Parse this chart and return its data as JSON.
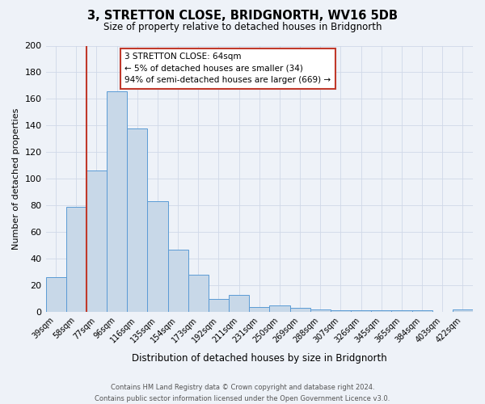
{
  "title": "3, STRETTON CLOSE, BRIDGNORTH, WV16 5DB",
  "subtitle": "Size of property relative to detached houses in Bridgnorth",
  "xlabel": "Distribution of detached houses by size in Bridgnorth",
  "ylabel": "Number of detached properties",
  "footer_line1": "Contains HM Land Registry data © Crown copyright and database right 2024.",
  "footer_line2": "Contains public sector information licensed under the Open Government Licence v3.0.",
  "bin_labels": [
    "39sqm",
    "58sqm",
    "77sqm",
    "96sqm",
    "116sqm",
    "135sqm",
    "154sqm",
    "173sqm",
    "192sqm",
    "211sqm",
    "231sqm",
    "250sqm",
    "269sqm",
    "288sqm",
    "307sqm",
    "326sqm",
    "345sqm",
    "365sqm",
    "384sqm",
    "403sqm",
    "422sqm"
  ],
  "bar_heights": [
    26,
    79,
    106,
    166,
    138,
    83,
    47,
    28,
    10,
    13,
    4,
    5,
    3,
    2,
    1,
    1,
    1,
    1,
    1,
    0,
    2
  ],
  "bar_color": "#c8d8e8",
  "bar_edge_color": "#5b9bd5",
  "vline_color": "#c0392b",
  "annotation_title": "3 STRETTON CLOSE: 64sqm",
  "annotation_line2": "← 5% of detached houses are smaller (34)",
  "annotation_line3": "94% of semi-detached houses are larger (669) →",
  "annotation_box_color": "#ffffff",
  "annotation_box_edge_color": "#c0392b",
  "ylim": [
    0,
    200
  ],
  "yticks": [
    0,
    20,
    40,
    60,
    80,
    100,
    120,
    140,
    160,
    180,
    200
  ],
  "grid_color": "#d0d8e8",
  "background_color": "#eef2f8"
}
